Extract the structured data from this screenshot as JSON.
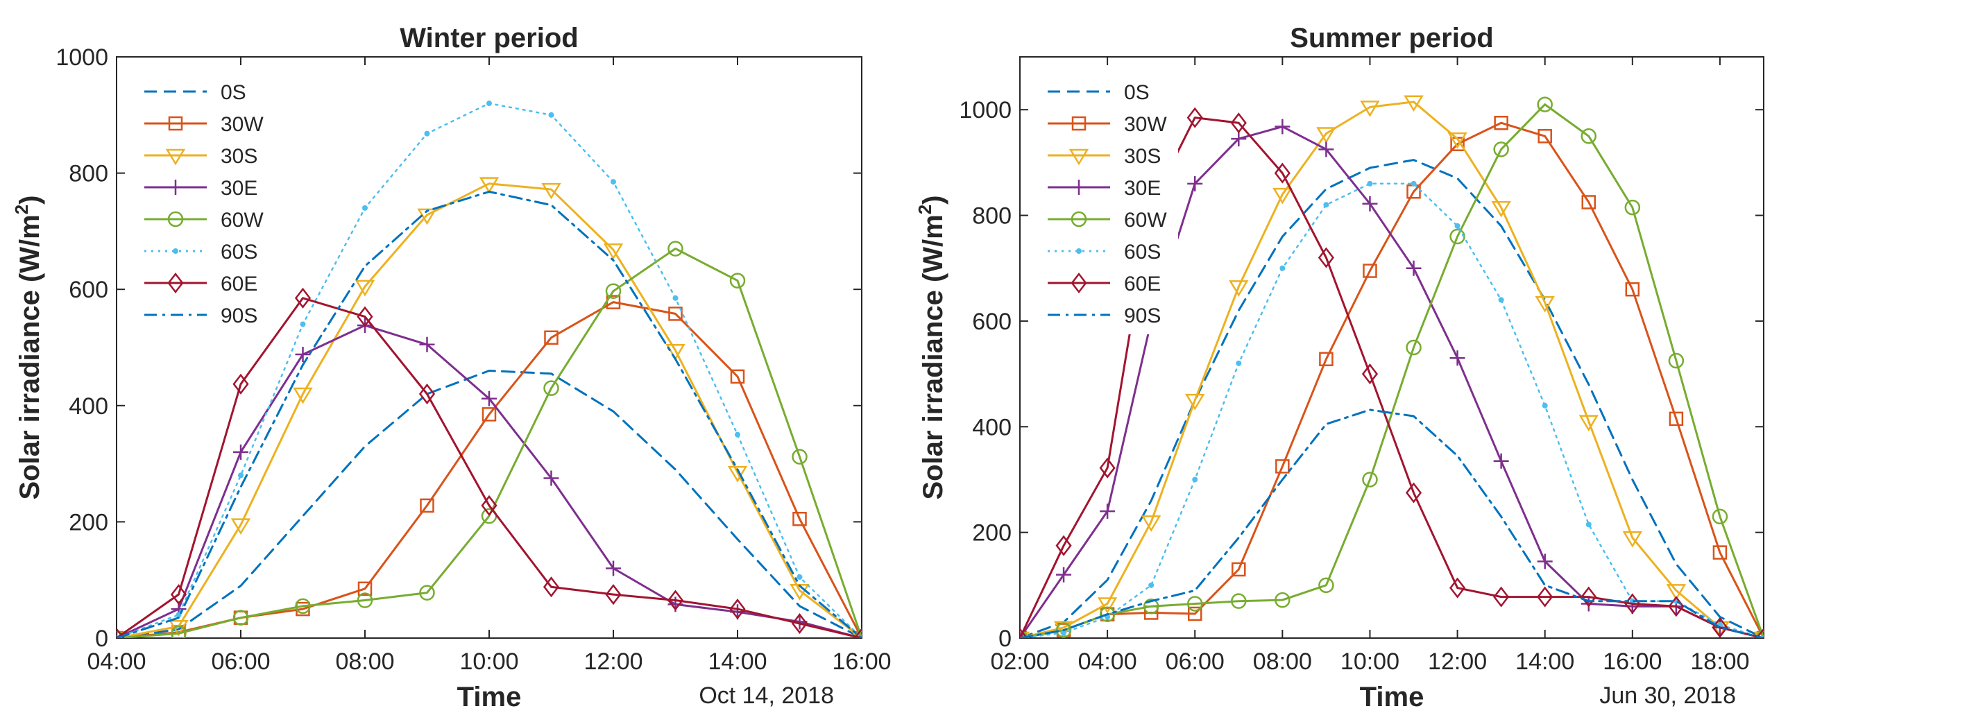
{
  "chart_data": [
    {
      "type": "line",
      "title": "Winter period",
      "xlabel": "Time",
      "ylabel": "Solar irradiance (W/m",
      "ylabel_sup": "2",
      "ylabel_end": ")",
      "date_label": "Oct 14, 2018",
      "x": [
        4,
        5,
        6,
        7,
        8,
        9,
        10,
        11,
        12,
        13,
        14,
        15,
        16
      ],
      "xlim": [
        4,
        16
      ],
      "ylim": [
        0,
        1000
      ],
      "xticks": [
        "04:00",
        "06:00",
        "08:00",
        "10:00",
        "12:00",
        "14:00",
        "16:00"
      ],
      "yticks": [
        "0",
        "200",
        "400",
        "600",
        "800",
        "1000"
      ],
      "legend_position": "top-left",
      "series": [
        {
          "name": "0S",
          "color": "#0072BD",
          "dash": "dashed",
          "marker": "none",
          "values": [
            0,
            15,
            90,
            210,
            330,
            420,
            460,
            455,
            390,
            290,
            170,
            55,
            0
          ]
        },
        {
          "name": "30W",
          "color": "#D95319",
          "dash": "solid",
          "marker": "square",
          "values": [
            0,
            10,
            35,
            50,
            85,
            228,
            385,
            517,
            578,
            558,
            450,
            205,
            0
          ]
        },
        {
          "name": "30S",
          "color": "#EDB120",
          "dash": "solid",
          "marker": "triangle-down",
          "values": [
            0,
            20,
            195,
            420,
            605,
            728,
            782,
            772,
            668,
            495,
            285,
            82,
            0
          ]
        },
        {
          "name": "30E",
          "color": "#7E2F8E",
          "dash": "solid",
          "marker": "plus",
          "values": [
            0,
            50,
            320,
            488,
            538,
            505,
            412,
            275,
            120,
            58,
            45,
            28,
            0
          ]
        },
        {
          "name": "60W",
          "color": "#77AC30",
          "dash": "solid",
          "marker": "circle",
          "values": [
            0,
            8,
            35,
            55,
            65,
            78,
            210,
            430,
            597,
            670,
            615,
            312,
            0
          ]
        },
        {
          "name": "60S",
          "color": "#4DBEEE",
          "dash": "dotted",
          "marker": "dot",
          "values": [
            0,
            40,
            280,
            540,
            740,
            868,
            920,
            900,
            785,
            585,
            350,
            105,
            0
          ]
        },
        {
          "name": "60E",
          "color": "#A2142F",
          "dash": "solid",
          "marker": "diamond",
          "values": [
            0,
            75,
            437,
            585,
            553,
            420,
            228,
            88,
            75,
            65,
            50,
            25,
            0
          ]
        },
        {
          "name": "90S",
          "color": "#0072BD",
          "dash": "dashdot",
          "marker": "none",
          "values": [
            0,
            35,
            260,
            470,
            640,
            735,
            768,
            745,
            650,
            480,
            290,
            90,
            0
          ]
        }
      ]
    },
    {
      "type": "line",
      "title": "Summer period",
      "xlabel": "Time",
      "ylabel": "Solar irradiance (W/m",
      "ylabel_sup": "2",
      "ylabel_end": ")",
      "date_label": "Jun 30, 2018",
      "x": [
        2,
        3,
        4,
        5,
        6,
        7,
        8,
        9,
        10,
        11,
        12,
        13,
        14,
        15,
        16,
        17,
        18,
        19
      ],
      "xlim": [
        2,
        19
      ],
      "ylim": [
        0,
        1100
      ],
      "xticks": [
        "02:00",
        "04:00",
        "06:00",
        "08:00",
        "10:00",
        "12:00",
        "14:00",
        "16:00",
        "18:00"
      ],
      "yticks": [
        "0",
        "200",
        "400",
        "600",
        "800",
        "1000"
      ],
      "legend_position": "top-left",
      "series": [
        {
          "name": "0S",
          "color": "#0072BD",
          "dash": "dashed",
          "marker": "none",
          "values": [
            0,
            30,
            110,
            260,
            450,
            620,
            760,
            850,
            890,
            905,
            870,
            780,
            640,
            480,
            300,
            140,
            40,
            0
          ]
        },
        {
          "name": "30W",
          "color": "#D95319",
          "dash": "solid",
          "marker": "square",
          "values": [
            0,
            15,
            45,
            48,
            46,
            130,
            325,
            528,
            695,
            845,
            935,
            975,
            950,
            825,
            660,
            415,
            162,
            0
          ]
        },
        {
          "name": "30S",
          "color": "#EDB120",
          "dash": "solid",
          "marker": "triangle-down",
          "values": [
            0,
            20,
            65,
            220,
            450,
            665,
            840,
            955,
            1005,
            1015,
            945,
            815,
            635,
            410,
            190,
            90,
            20,
            0
          ]
        },
        {
          "name": "30E",
          "color": "#7E2F8E",
          "dash": "solid",
          "marker": "plus",
          "values": [
            0,
            120,
            240,
            600,
            860,
            945,
            968,
            925,
            822,
            700,
            530,
            335,
            145,
            65,
            60,
            60,
            20,
            0
          ]
        },
        {
          "name": "60W",
          "color": "#77AC30",
          "dash": "solid",
          "marker": "circle",
          "values": [
            0,
            15,
            45,
            60,
            65,
            70,
            72,
            100,
            300,
            550,
            760,
            925,
            1010,
            950,
            815,
            525,
            230,
            0
          ]
        },
        {
          "name": "60S",
          "color": "#4DBEEE",
          "dash": "dotted",
          "marker": "dot",
          "values": [
            0,
            10,
            40,
            100,
            300,
            520,
            700,
            820,
            860,
            860,
            780,
            640,
            440,
            215,
            70,
            70,
            25,
            0
          ]
        },
        {
          "name": "60E",
          "color": "#A2142F",
          "dash": "solid",
          "marker": "diamond",
          "values": [
            0,
            175,
            322,
            820,
            985,
            975,
            880,
            720,
            500,
            275,
            95,
            78,
            78,
            78,
            65,
            60,
            20,
            0
          ]
        },
        {
          "name": "90S",
          "color": "#0072BD",
          "dash": "dashdot",
          "marker": "none",
          "values": [
            0,
            15,
            45,
            70,
            90,
            190,
            300,
            405,
            432,
            420,
            345,
            230,
            100,
            70,
            70,
            70,
            20,
            0
          ]
        }
      ]
    }
  ]
}
